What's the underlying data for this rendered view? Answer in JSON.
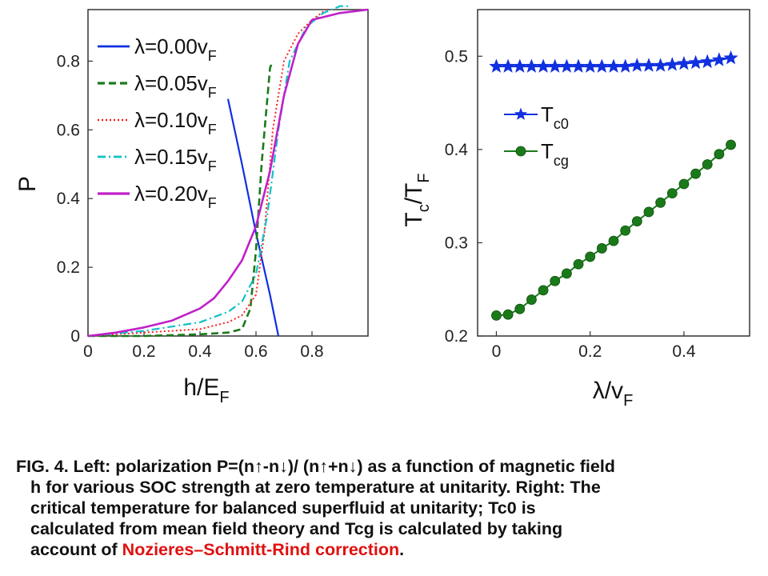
{
  "left_chart": {
    "ylabel": "P",
    "xlabel_main": "h/E",
    "xlabel_sub": "F",
    "xticks": [
      "0",
      "0.2",
      "0.4",
      "0.6",
      "0.8"
    ],
    "yticks": [
      "0",
      "0.2",
      "0.4",
      "0.6",
      "0.8"
    ],
    "legend": [
      {
        "main": "λ=0.00v",
        "sub": "F",
        "color": "#1030e0",
        "style": "solid"
      },
      {
        "main": "λ=0.05v",
        "sub": "F",
        "color": "#1a7a1a",
        "style": "dashed"
      },
      {
        "main": "λ=0.10v",
        "sub": "F",
        "color": "#ff2020",
        "style": "dotted"
      },
      {
        "main": "λ=0.15v",
        "sub": "F",
        "color": "#10c0c8",
        "style": "dashdot"
      },
      {
        "main": "λ=0.20v",
        "sub": "F",
        "color": "#c020c8",
        "style": "solid-marker"
      }
    ]
  },
  "right_chart": {
    "ylabel_main": "T",
    "ylabel_sub1": "c",
    "ylabel_mid": "/T",
    "ylabel_sub2": "F",
    "xlabel_main": "λ/v",
    "xlabel_sub": "F",
    "xticks": [
      "0",
      "0.2",
      "0.4"
    ],
    "yticks": [
      "0.2",
      "0.3",
      "0.4",
      "0.5"
    ],
    "legend": [
      {
        "main": "T",
        "sub": "c0",
        "color": "#1030e0",
        "marker": "star"
      },
      {
        "main": "T",
        "sub": "cg",
        "color": "#1a7a1a",
        "marker": "circle"
      }
    ]
  },
  "chart_data": [
    {
      "type": "line",
      "xlabel": "h/E_F",
      "ylabel": "P",
      "xlim": [
        0,
        1.0
      ],
      "ylim": [
        0,
        0.95
      ],
      "series": [
        {
          "name": "λ=0.00v_F",
          "x": [
            0.5,
            0.55,
            0.6,
            0.65,
            0.68
          ],
          "y": [
            0.69,
            0.5,
            0.3,
            0.12,
            0.0
          ]
        },
        {
          "name": "λ=0.05v_F",
          "x": [
            0,
            0.2,
            0.4,
            0.5,
            0.55,
            0.58,
            0.6,
            0.62,
            0.65,
            0.66
          ],
          "y": [
            0,
            0.0,
            0.005,
            0.01,
            0.02,
            0.08,
            0.25,
            0.5,
            0.78,
            0.8
          ]
        },
        {
          "name": "λ=0.10v_F",
          "x": [
            0,
            0.2,
            0.4,
            0.5,
            0.55,
            0.6,
            0.63,
            0.66,
            0.7,
            0.75,
            0.8,
            0.85
          ],
          "y": [
            0,
            0.01,
            0.02,
            0.04,
            0.06,
            0.12,
            0.3,
            0.6,
            0.8,
            0.88,
            0.92,
            0.95
          ]
        },
        {
          "name": "λ=0.15v_F",
          "x": [
            0,
            0.2,
            0.4,
            0.5,
            0.55,
            0.6,
            0.64,
            0.68,
            0.72,
            0.78,
            0.84,
            0.9,
            0.94
          ],
          "y": [
            0,
            0.015,
            0.04,
            0.07,
            0.1,
            0.18,
            0.35,
            0.6,
            0.8,
            0.9,
            0.94,
            0.96,
            0.96
          ]
        },
        {
          "name": "λ=0.20v_F",
          "x": [
            0,
            0.1,
            0.2,
            0.3,
            0.4,
            0.45,
            0.5,
            0.55,
            0.6,
            0.65,
            0.7,
            0.75,
            0.8,
            0.9,
            1.0
          ],
          "y": [
            0,
            0.01,
            0.025,
            0.045,
            0.08,
            0.11,
            0.16,
            0.22,
            0.32,
            0.48,
            0.7,
            0.85,
            0.92,
            0.94,
            0.95
          ]
        }
      ]
    },
    {
      "type": "scatter",
      "xlabel": "λ/v_F",
      "ylabel": "T_c/T_F",
      "xlim": [
        -0.04,
        0.54
      ],
      "ylim": [
        0.2,
        0.55
      ],
      "series": [
        {
          "name": "T_c0",
          "x": [
            0,
            0.025,
            0.05,
            0.075,
            0.1,
            0.125,
            0.15,
            0.175,
            0.2,
            0.225,
            0.25,
            0.275,
            0.3,
            0.325,
            0.35,
            0.375,
            0.4,
            0.425,
            0.45,
            0.475,
            0.5
          ],
          "y": [
            0.489,
            0.489,
            0.489,
            0.489,
            0.489,
            0.489,
            0.489,
            0.489,
            0.489,
            0.489,
            0.489,
            0.489,
            0.49,
            0.49,
            0.49,
            0.491,
            0.492,
            0.493,
            0.494,
            0.496,
            0.498
          ]
        },
        {
          "name": "T_cg",
          "x": [
            0,
            0.025,
            0.05,
            0.075,
            0.1,
            0.125,
            0.15,
            0.175,
            0.2,
            0.225,
            0.25,
            0.275,
            0.3,
            0.325,
            0.35,
            0.375,
            0.4,
            0.425,
            0.45,
            0.475,
            0.5
          ],
          "y": [
            0.222,
            0.223,
            0.229,
            0.239,
            0.249,
            0.259,
            0.267,
            0.277,
            0.285,
            0.294,
            0.302,
            0.313,
            0.323,
            0.333,
            0.343,
            0.353,
            0.363,
            0.374,
            0.384,
            0.395,
            0.405
          ]
        }
      ]
    }
  ],
  "caption": {
    "line1": "FIG. 4. Left: polarization P=(n↑-n↓)/ (n↑+n↓) as a function of magnetic field",
    "line2": "h for various SOC strength at zero temperature at unitarity. Right: The",
    "line3": "critical temperature for balanced superfluid at unitarity; Tc0 is",
    "line4": "calculated from mean field theory and Tcg is calculated by taking",
    "line5_start": "account of ",
    "line5_red": "Nozieres–Schmitt-Rind correction",
    "line5_end": "."
  }
}
